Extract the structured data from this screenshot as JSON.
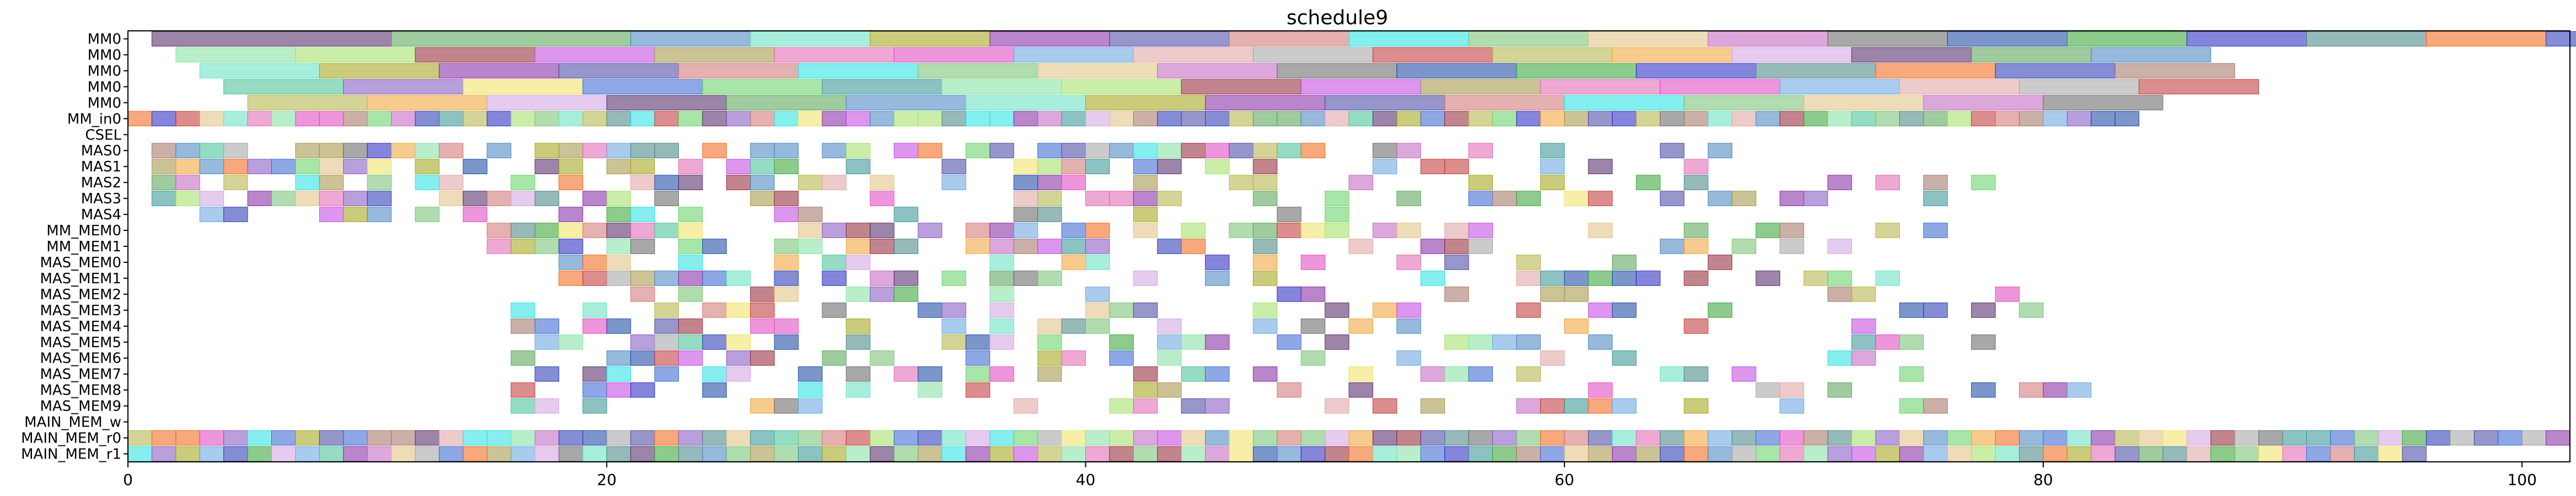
{
  "chart_data": {
    "type": "gantt",
    "title": "schedule9",
    "xlabel": "",
    "ylabel": "",
    "xlim": [
      0,
      102
    ],
    "xticks": [
      0,
      20,
      40,
      60,
      80,
      100
    ],
    "grid": false,
    "rows": [
      "MM0",
      "MM0",
      "MM0",
      "MM0",
      "MM0",
      "MM_in0",
      "CSEL",
      "MAS0",
      "MAS1",
      "MAS2",
      "MAS3",
      "MAS4",
      "MM_MEM0",
      "MM_MEM1",
      "MAS_MEM0",
      "MAS_MEM1",
      "MAS_MEM2",
      "MAS_MEM3",
      "MAS_MEM4",
      "MAS_MEM5",
      "MAS_MEM6",
      "MAS_MEM7",
      "MAS_MEM8",
      "MAS_MEM9",
      "MAIN_MEM_w",
      "MAIN_MEM_r0",
      "MAIN_MEM_r1"
    ],
    "palette": [
      "#4a2060",
      "#9ee060",
      "#30a030",
      "#50a050",
      "#902030",
      "#2020c0",
      "#4080c0",
      "#c040e0",
      "#408080",
      "#60e0c0",
      "#a09040",
      "#f06010",
      "#a0a010",
      "#e060b0",
      "#2030b0",
      "#8020a0",
      "#e040c0",
      "#a07060",
      "#4040a0",
      "#60a0e0",
      "#40c090",
      "#d07070",
      "#e0a0a0",
      "#8050c0",
      "#20e0e0",
      "#a0a0a0",
      "#f0e060",
      "#70c070",
      "#c03030",
      "#3060d0",
      "#e0c080",
      "#b0b040",
      "#60d060",
      "#c060c0",
      "#f0a030",
      "#309090",
      "#606060",
      "#d0a0e0",
      "#80e0a0",
      "#1040a0"
    ],
    "series": [
      {
        "row": 0,
        "segments": [
          [
            1,
            10
          ],
          [
            10,
            5
          ],
          [
            5,
            5
          ],
          [
            5,
            5
          ],
          [
            5,
            5
          ],
          [
            5,
            5
          ],
          [
            5,
            5
          ],
          [
            5,
            5
          ],
          [
            5,
            5
          ],
          [
            5,
            5
          ],
          [
            5,
            5
          ],
          [
            5,
            5
          ],
          [
            5,
            5
          ],
          [
            5,
            5
          ],
          [
            5,
            5
          ],
          [
            5,
            5
          ],
          [
            5,
            5
          ],
          [
            5,
            5
          ],
          [
            5,
            5
          ],
          [
            5,
            5
          ],
          [
            5,
            5
          ],
          [
            5,
            5
          ],
          [
            5,
            5
          ],
          [
            5,
            5
          ],
          [
            5,
            5
          ],
          [
            5,
            5
          ]
        ]
      },
      {
        "row": 1,
        "segments": [
          [
            2,
            5
          ],
          [
            5,
            5
          ],
          [
            5,
            5
          ],
          [
            5,
            5
          ],
          [
            5,
            5
          ],
          [
            5,
            5
          ],
          [
            5,
            5
          ],
          [
            5,
            5
          ],
          [
            5,
            5
          ],
          [
            5,
            5
          ],
          [
            5,
            5
          ],
          [
            5,
            5
          ],
          [
            5,
            5
          ],
          [
            5,
            5
          ],
          [
            5,
            5
          ],
          [
            5,
            5
          ],
          [
            5,
            5
          ]
        ]
      },
      {
        "row": 2,
        "segments": [
          [
            3,
            5
          ],
          [
            5,
            5
          ],
          [
            5,
            5
          ],
          [
            5,
            5
          ],
          [
            5,
            5
          ],
          [
            5,
            5
          ],
          [
            5,
            5
          ],
          [
            5,
            5
          ],
          [
            5,
            5
          ],
          [
            5,
            5
          ],
          [
            5,
            5
          ],
          [
            5,
            5
          ],
          [
            5,
            5
          ],
          [
            5,
            5
          ],
          [
            5,
            5
          ],
          [
            5,
            5
          ],
          [
            5,
            5
          ]
        ]
      },
      {
        "row": 3,
        "segments": [
          [
            4,
            5
          ],
          [
            5,
            5
          ],
          [
            5,
            5
          ],
          [
            5,
            5
          ],
          [
            5,
            5
          ],
          [
            5,
            5
          ],
          [
            5,
            5
          ],
          [
            5,
            5
          ],
          [
            5,
            5
          ],
          [
            5,
            5
          ],
          [
            5,
            5
          ],
          [
            5,
            5
          ],
          [
            5,
            5
          ],
          [
            5,
            5
          ],
          [
            5,
            5
          ],
          [
            5,
            5
          ],
          [
            5,
            5
          ]
        ]
      },
      {
        "row": 4,
        "segments": [
          [
            5,
            5
          ],
          [
            5,
            5
          ],
          [
            5,
            5
          ],
          [
            5,
            5
          ],
          [
            5,
            5
          ],
          [
            5,
            5
          ],
          [
            5,
            5
          ],
          [
            5,
            5
          ],
          [
            5,
            5
          ],
          [
            5,
            5
          ],
          [
            5,
            5
          ],
          [
            5,
            5
          ],
          [
            5,
            5
          ],
          [
            5,
            5
          ],
          [
            5,
            5
          ],
          [
            5,
            5
          ]
        ]
      }
    ],
    "dense_rows": [
      {
        "row": 5,
        "start": 0,
        "end": 84,
        "step": 1,
        "seed": 11,
        "density": 1.0
      },
      {
        "row": 7,
        "start": 1,
        "end": 68,
        "step": 1,
        "seed": 21,
        "density": 0.85
      },
      {
        "row": 8,
        "start": 1,
        "end": 68,
        "step": 1,
        "seed": 22,
        "density": 0.75
      },
      {
        "row": 9,
        "start": 1,
        "end": 78,
        "step": 1,
        "seed": 23,
        "density": 0.6
      },
      {
        "row": 10,
        "start": 1,
        "end": 79,
        "step": 1,
        "seed": 24,
        "density": 0.6
      },
      {
        "row": 11,
        "start": 1,
        "end": 55,
        "step": 1,
        "seed": 25,
        "density": 0.55
      },
      {
        "row": 12,
        "start": 15,
        "end": 78,
        "step": 1,
        "seed": 26,
        "density": 0.7
      },
      {
        "row": 13,
        "start": 15,
        "end": 78,
        "step": 1,
        "seed": 27,
        "density": 0.7
      },
      {
        "row": 14,
        "start": 18,
        "end": 76,
        "step": 1,
        "seed": 28,
        "density": 0.45
      },
      {
        "row": 15,
        "start": 16,
        "end": 82,
        "step": 1,
        "seed": 29,
        "density": 0.6
      },
      {
        "row": 16,
        "start": 16,
        "end": 83,
        "step": 1,
        "seed": 30,
        "density": 0.55
      },
      {
        "row": 17,
        "start": 16,
        "end": 81,
        "step": 1,
        "seed": 31,
        "density": 0.55
      },
      {
        "row": 18,
        "start": 16,
        "end": 80,
        "step": 1,
        "seed": 32,
        "density": 0.5
      },
      {
        "row": 19,
        "start": 16,
        "end": 84,
        "step": 1,
        "seed": 33,
        "density": 0.5
      },
      {
        "row": 20,
        "start": 15,
        "end": 77,
        "step": 1,
        "seed": 34,
        "density": 0.5
      },
      {
        "row": 21,
        "start": 15,
        "end": 77,
        "step": 1,
        "seed": 35,
        "density": 0.5
      },
      {
        "row": 22,
        "start": 16,
        "end": 83,
        "step": 1,
        "seed": 36,
        "density": 0.45
      },
      {
        "row": 23,
        "start": 16,
        "end": 78,
        "step": 1,
        "seed": 37,
        "density": 0.45
      },
      {
        "row": 25,
        "start": 0,
        "end": 102,
        "step": 1,
        "seed": 41,
        "density": 1.0
      },
      {
        "row": 26,
        "start": 0,
        "end": 96,
        "step": 1,
        "seed": 42,
        "density": 1.0
      }
    ]
  }
}
